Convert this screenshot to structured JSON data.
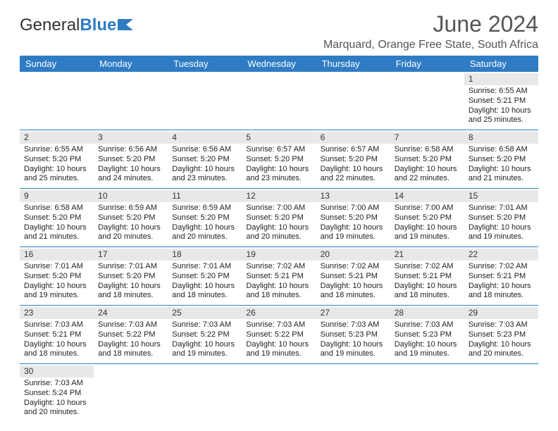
{
  "brand": {
    "part1": "General",
    "part2": "Blue"
  },
  "title": "June 2024",
  "location": "Marquard, Orange Free State, South Africa",
  "colors": {
    "header_bg": "#2f7cc4",
    "header_text": "#ffffff",
    "grid_line": "#2f7cc4",
    "daynum_bg": "#e8e8e8",
    "page_bg": "#ffffff"
  },
  "day_headers": [
    "Sunday",
    "Monday",
    "Tuesday",
    "Wednesday",
    "Thursday",
    "Friday",
    "Saturday"
  ],
  "weeks": [
    [
      null,
      null,
      null,
      null,
      null,
      null,
      {
        "n": "1",
        "sr": "Sunrise: 6:55 AM",
        "ss": "Sunset: 5:21 PM",
        "d1": "Daylight: 10 hours",
        "d2": "and 25 minutes."
      }
    ],
    [
      {
        "n": "2",
        "sr": "Sunrise: 6:55 AM",
        "ss": "Sunset: 5:20 PM",
        "d1": "Daylight: 10 hours",
        "d2": "and 25 minutes."
      },
      {
        "n": "3",
        "sr": "Sunrise: 6:56 AM",
        "ss": "Sunset: 5:20 PM",
        "d1": "Daylight: 10 hours",
        "d2": "and 24 minutes."
      },
      {
        "n": "4",
        "sr": "Sunrise: 6:56 AM",
        "ss": "Sunset: 5:20 PM",
        "d1": "Daylight: 10 hours",
        "d2": "and 23 minutes."
      },
      {
        "n": "5",
        "sr": "Sunrise: 6:57 AM",
        "ss": "Sunset: 5:20 PM",
        "d1": "Daylight: 10 hours",
        "d2": "and 23 minutes."
      },
      {
        "n": "6",
        "sr": "Sunrise: 6:57 AM",
        "ss": "Sunset: 5:20 PM",
        "d1": "Daylight: 10 hours",
        "d2": "and 22 minutes."
      },
      {
        "n": "7",
        "sr": "Sunrise: 6:58 AM",
        "ss": "Sunset: 5:20 PM",
        "d1": "Daylight: 10 hours",
        "d2": "and 22 minutes."
      },
      {
        "n": "8",
        "sr": "Sunrise: 6:58 AM",
        "ss": "Sunset: 5:20 PM",
        "d1": "Daylight: 10 hours",
        "d2": "and 21 minutes."
      }
    ],
    [
      {
        "n": "9",
        "sr": "Sunrise: 6:58 AM",
        "ss": "Sunset: 5:20 PM",
        "d1": "Daylight: 10 hours",
        "d2": "and 21 minutes."
      },
      {
        "n": "10",
        "sr": "Sunrise: 6:59 AM",
        "ss": "Sunset: 5:20 PM",
        "d1": "Daylight: 10 hours",
        "d2": "and 20 minutes."
      },
      {
        "n": "11",
        "sr": "Sunrise: 6:59 AM",
        "ss": "Sunset: 5:20 PM",
        "d1": "Daylight: 10 hours",
        "d2": "and 20 minutes."
      },
      {
        "n": "12",
        "sr": "Sunrise: 7:00 AM",
        "ss": "Sunset: 5:20 PM",
        "d1": "Daylight: 10 hours",
        "d2": "and 20 minutes."
      },
      {
        "n": "13",
        "sr": "Sunrise: 7:00 AM",
        "ss": "Sunset: 5:20 PM",
        "d1": "Daylight: 10 hours",
        "d2": "and 19 minutes."
      },
      {
        "n": "14",
        "sr": "Sunrise: 7:00 AM",
        "ss": "Sunset: 5:20 PM",
        "d1": "Daylight: 10 hours",
        "d2": "and 19 minutes."
      },
      {
        "n": "15",
        "sr": "Sunrise: 7:01 AM",
        "ss": "Sunset: 5:20 PM",
        "d1": "Daylight: 10 hours",
        "d2": "and 19 minutes."
      }
    ],
    [
      {
        "n": "16",
        "sr": "Sunrise: 7:01 AM",
        "ss": "Sunset: 5:20 PM",
        "d1": "Daylight: 10 hours",
        "d2": "and 19 minutes."
      },
      {
        "n": "17",
        "sr": "Sunrise: 7:01 AM",
        "ss": "Sunset: 5:20 PM",
        "d1": "Daylight: 10 hours",
        "d2": "and 18 minutes."
      },
      {
        "n": "18",
        "sr": "Sunrise: 7:01 AM",
        "ss": "Sunset: 5:20 PM",
        "d1": "Daylight: 10 hours",
        "d2": "and 18 minutes."
      },
      {
        "n": "19",
        "sr": "Sunrise: 7:02 AM",
        "ss": "Sunset: 5:21 PM",
        "d1": "Daylight: 10 hours",
        "d2": "and 18 minutes."
      },
      {
        "n": "20",
        "sr": "Sunrise: 7:02 AM",
        "ss": "Sunset: 5:21 PM",
        "d1": "Daylight: 10 hours",
        "d2": "and 18 minutes."
      },
      {
        "n": "21",
        "sr": "Sunrise: 7:02 AM",
        "ss": "Sunset: 5:21 PM",
        "d1": "Daylight: 10 hours",
        "d2": "and 18 minutes."
      },
      {
        "n": "22",
        "sr": "Sunrise: 7:02 AM",
        "ss": "Sunset: 5:21 PM",
        "d1": "Daylight: 10 hours",
        "d2": "and 18 minutes."
      }
    ],
    [
      {
        "n": "23",
        "sr": "Sunrise: 7:03 AM",
        "ss": "Sunset: 5:21 PM",
        "d1": "Daylight: 10 hours",
        "d2": "and 18 minutes."
      },
      {
        "n": "24",
        "sr": "Sunrise: 7:03 AM",
        "ss": "Sunset: 5:22 PM",
        "d1": "Daylight: 10 hours",
        "d2": "and 18 minutes."
      },
      {
        "n": "25",
        "sr": "Sunrise: 7:03 AM",
        "ss": "Sunset: 5:22 PM",
        "d1": "Daylight: 10 hours",
        "d2": "and 19 minutes."
      },
      {
        "n": "26",
        "sr": "Sunrise: 7:03 AM",
        "ss": "Sunset: 5:22 PM",
        "d1": "Daylight: 10 hours",
        "d2": "and 19 minutes."
      },
      {
        "n": "27",
        "sr": "Sunrise: 7:03 AM",
        "ss": "Sunset: 5:23 PM",
        "d1": "Daylight: 10 hours",
        "d2": "and 19 minutes."
      },
      {
        "n": "28",
        "sr": "Sunrise: 7:03 AM",
        "ss": "Sunset: 5:23 PM",
        "d1": "Daylight: 10 hours",
        "d2": "and 19 minutes."
      },
      {
        "n": "29",
        "sr": "Sunrise: 7:03 AM",
        "ss": "Sunset: 5:23 PM",
        "d1": "Daylight: 10 hours",
        "d2": "and 20 minutes."
      }
    ],
    [
      {
        "n": "30",
        "sr": "Sunrise: 7:03 AM",
        "ss": "Sunset: 5:24 PM",
        "d1": "Daylight: 10 hours",
        "d2": "and 20 minutes."
      },
      null,
      null,
      null,
      null,
      null,
      null
    ]
  ]
}
